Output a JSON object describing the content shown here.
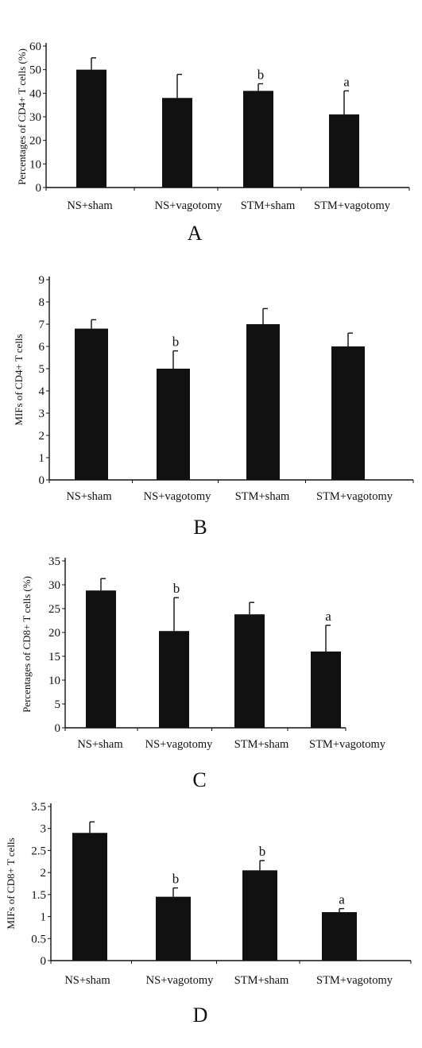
{
  "figure": {
    "panels": [
      "A",
      "B",
      "C",
      "D"
    ]
  },
  "chart_data": [
    {
      "type": "bar",
      "panel_label": "A",
      "ylabel": "Percentages of CD4+ T cells (%)",
      "categories": [
        "NS+sham",
        "NS+vagotomy",
        "STM+sham",
        "STM+vagotomy"
      ],
      "values": [
        50,
        38,
        41,
        31
      ],
      "errors": [
        5,
        10,
        3,
        10
      ],
      "significance": [
        "",
        "",
        "b",
        "a"
      ],
      "ylim": [
        0,
        60
      ],
      "yticks": [
        0,
        10,
        20,
        30,
        40,
        50,
        60
      ],
      "bar_color": "#111111"
    },
    {
      "type": "bar",
      "panel_label": "B",
      "ylabel": "MIFs of CD4+ T cells",
      "categories": [
        "NS+sham",
        "NS+vagotomy",
        "STM+sham",
        "STM+vagotomy"
      ],
      "values": [
        6.8,
        5.0,
        7.0,
        6.0
      ],
      "errors": [
        0.4,
        0.8,
        0.7,
        0.6
      ],
      "significance": [
        "",
        "b",
        "",
        ""
      ],
      "ylim": [
        0,
        9
      ],
      "yticks": [
        0,
        1,
        2,
        3,
        4,
        5,
        6,
        7,
        8,
        9
      ],
      "bar_color": "#111111"
    },
    {
      "type": "bar",
      "panel_label": "C",
      "ylabel": "Percentages of CD8+ T cells (%)",
      "categories": [
        "NS+sham",
        "NS+vagotomy",
        "STM+sham",
        "STM+vagotomy"
      ],
      "values": [
        28.8,
        20.3,
        23.8,
        16
      ],
      "errors": [
        2.5,
        7,
        2.5,
        5.5
      ],
      "significance": [
        "",
        "b",
        "",
        "a"
      ],
      "ylim": [
        0,
        35
      ],
      "yticks": [
        0,
        5,
        10,
        15,
        20,
        25,
        30,
        35
      ],
      "bar_color": "#111111"
    },
    {
      "type": "bar",
      "panel_label": "D",
      "ylabel": "MIFs of CD8+ T cells",
      "categories": [
        "NS+sham",
        "NS+vagotomy",
        "STM+sham",
        "STM+vagotomy"
      ],
      "values": [
        2.9,
        1.45,
        2.05,
        1.1
      ],
      "errors": [
        0.25,
        0.2,
        0.22,
        0.08
      ],
      "significance": [
        "",
        "b",
        "b",
        "a"
      ],
      "ylim": [
        0,
        3.5
      ],
      "yticks": [
        "0",
        "0.5",
        "1",
        "1.5",
        "2",
        "2.5",
        "3",
        "3.5"
      ],
      "bar_color": "#111111"
    }
  ]
}
